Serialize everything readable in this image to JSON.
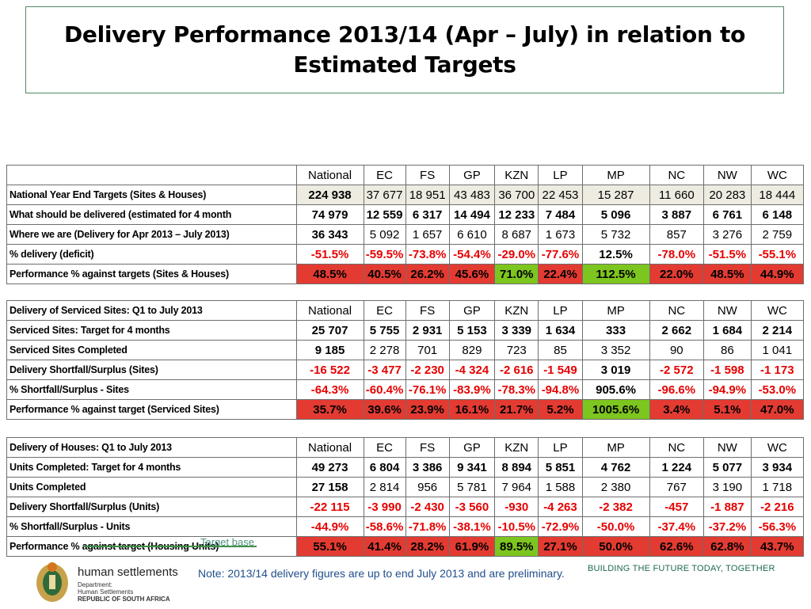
{
  "title": "Delivery Performance 2013/14 (Apr – July) in relation to Estimated Targets",
  "columns": [
    "National",
    "EC",
    "FS",
    "GP",
    "KZN",
    "LP",
    "MP",
    "NC",
    "NW",
    "WC"
  ],
  "section1": {
    "rows": [
      {
        "label": "National Year End Targets (Sites & Houses)",
        "values": [
          "224 938",
          "37 677",
          "18 951",
          "43 483",
          "36 700",
          "22 453",
          "15 287",
          "11 660",
          "20 283",
          "18 444"
        ]
      },
      {
        "label": "What should be delivered (estimated for 4 month",
        "values": [
          "74 979",
          "12 559",
          "6 317",
          "14 494",
          "12 233",
          "7 484",
          "5 096",
          "3 887",
          "6 761",
          "6 148"
        ]
      },
      {
        "label": "Where we are (Delivery for Apr 2013 – July 2013)",
        "values": [
          "36 343",
          "5 092",
          "1 657",
          "6 610",
          "8 687",
          "1 673",
          "5 732",
          "857",
          "3 276",
          "2 759"
        ]
      },
      {
        "label": "% delivery (deficit)",
        "values": [
          "-51.5%",
          "-59.5%",
          "-73.8%",
          "-54.4%",
          "-29.0%",
          "-77.6%",
          "12.5%",
          "-78.0%",
          "-51.5%",
          "-55.1%"
        ]
      },
      {
        "label": "Performance % against targets (Sites & Houses)",
        "values": [
          "48.5%",
          "40.5%",
          "26.2%",
          "45.6%",
          "71.0%",
          "22.4%",
          "112.5%",
          "22.0%",
          "48.5%",
          "44.9%"
        ]
      }
    ]
  },
  "section2": {
    "header": "Delivery of Serviced Sites: Q1 to July 2013",
    "rows": [
      {
        "label": "Serviced Sites: Target for 4 months",
        "values": [
          "25 707",
          "5 755",
          "2 931",
          "5 153",
          "3 339",
          "1 634",
          "333",
          "2 662",
          "1 684",
          "2 214"
        ]
      },
      {
        "label": "Serviced Sites Completed",
        "values": [
          "9 185",
          "2 278",
          "701",
          "829",
          "723",
          "85",
          "3 352",
          "90",
          "86",
          "1 041"
        ]
      },
      {
        "label": "Delivery Shortfall/Surplus (Sites)",
        "values": [
          "-16 522",
          "-3 477",
          "-2 230",
          "-4 324",
          "-2 616",
          "-1 549",
          "3 019",
          "-2 572",
          "-1 598",
          "-1 173"
        ]
      },
      {
        "label": "% Shortfall/Surplus - Sites",
        "values": [
          "-64.3%",
          "-60.4%",
          "-76.1%",
          "-83.9%",
          "-78.3%",
          "-94.8%",
          "905.6%",
          "-96.6%",
          "-94.9%",
          "-53.0%"
        ]
      },
      {
        "label": "Performance % against target (Serviced Sites)",
        "values": [
          "35.7%",
          "39.6%",
          "23.9%",
          "16.1%",
          "21.7%",
          "5.2%",
          "1005.6%",
          "3.4%",
          "5.1%",
          "47.0%"
        ]
      }
    ]
  },
  "section3": {
    "header": "Delivery of Houses: Q1 to July 2013",
    "rows": [
      {
        "label": "Units Completed: Target for 4 months",
        "values": [
          "49 273",
          "6 804",
          "3 386",
          "9 341",
          "8 894",
          "5 851",
          "4 762",
          "1 224",
          "5 077",
          "3 934"
        ]
      },
      {
        "label": "Units Completed",
        "values": [
          "27 158",
          "2 814",
          "956",
          "5 781",
          "7 964",
          "1 588",
          "2 380",
          "767",
          "3 190",
          "1 718"
        ]
      },
      {
        "label": "Delivery Shortfall/Surplus (Units)",
        "values": [
          "-22 115",
          "-3 990",
          "-2 430",
          "-3 560",
          "-930",
          "-4 263",
          "-2 382",
          "-457",
          "-1 887",
          "-2 216"
        ]
      },
      {
        "label": "% Shortfall/Surplus - Units",
        "values": [
          "-44.9%",
          "-58.6%",
          "-71.8%",
          "-38.1%",
          "-10.5%",
          "-72.9%",
          "-50.0%",
          "-37.4%",
          "-37.2%",
          "-56.3%"
        ]
      },
      {
        "label": "Performance % against target (Housing Units)",
        "values": [
          "55.1%",
          "41.4%",
          "28.2%",
          "61.9%",
          "89.5%",
          "27.1%",
          "50.0%",
          "62.6%",
          "62.8%",
          "43.7%"
        ]
      }
    ]
  },
  "footer": {
    "note": "Note: 2013/14 delivery figures are up to end July 2013 and are preliminary.",
    "ghost_text": "Target base",
    "tagline": "BUILDING THE FUTURE TODAY, TOGETHER",
    "logo_title": "human settlements",
    "logo_lines": [
      "Department:",
      "Human Settlements",
      "REPUBLIC OF SOUTH AFRICA"
    ]
  },
  "colors": {
    "red_fill": "#e33b32",
    "green_fill": "#7dc51f",
    "beige_fill": "#eeece1",
    "negative_text": "#e60000",
    "border": "#4f8a63"
  }
}
